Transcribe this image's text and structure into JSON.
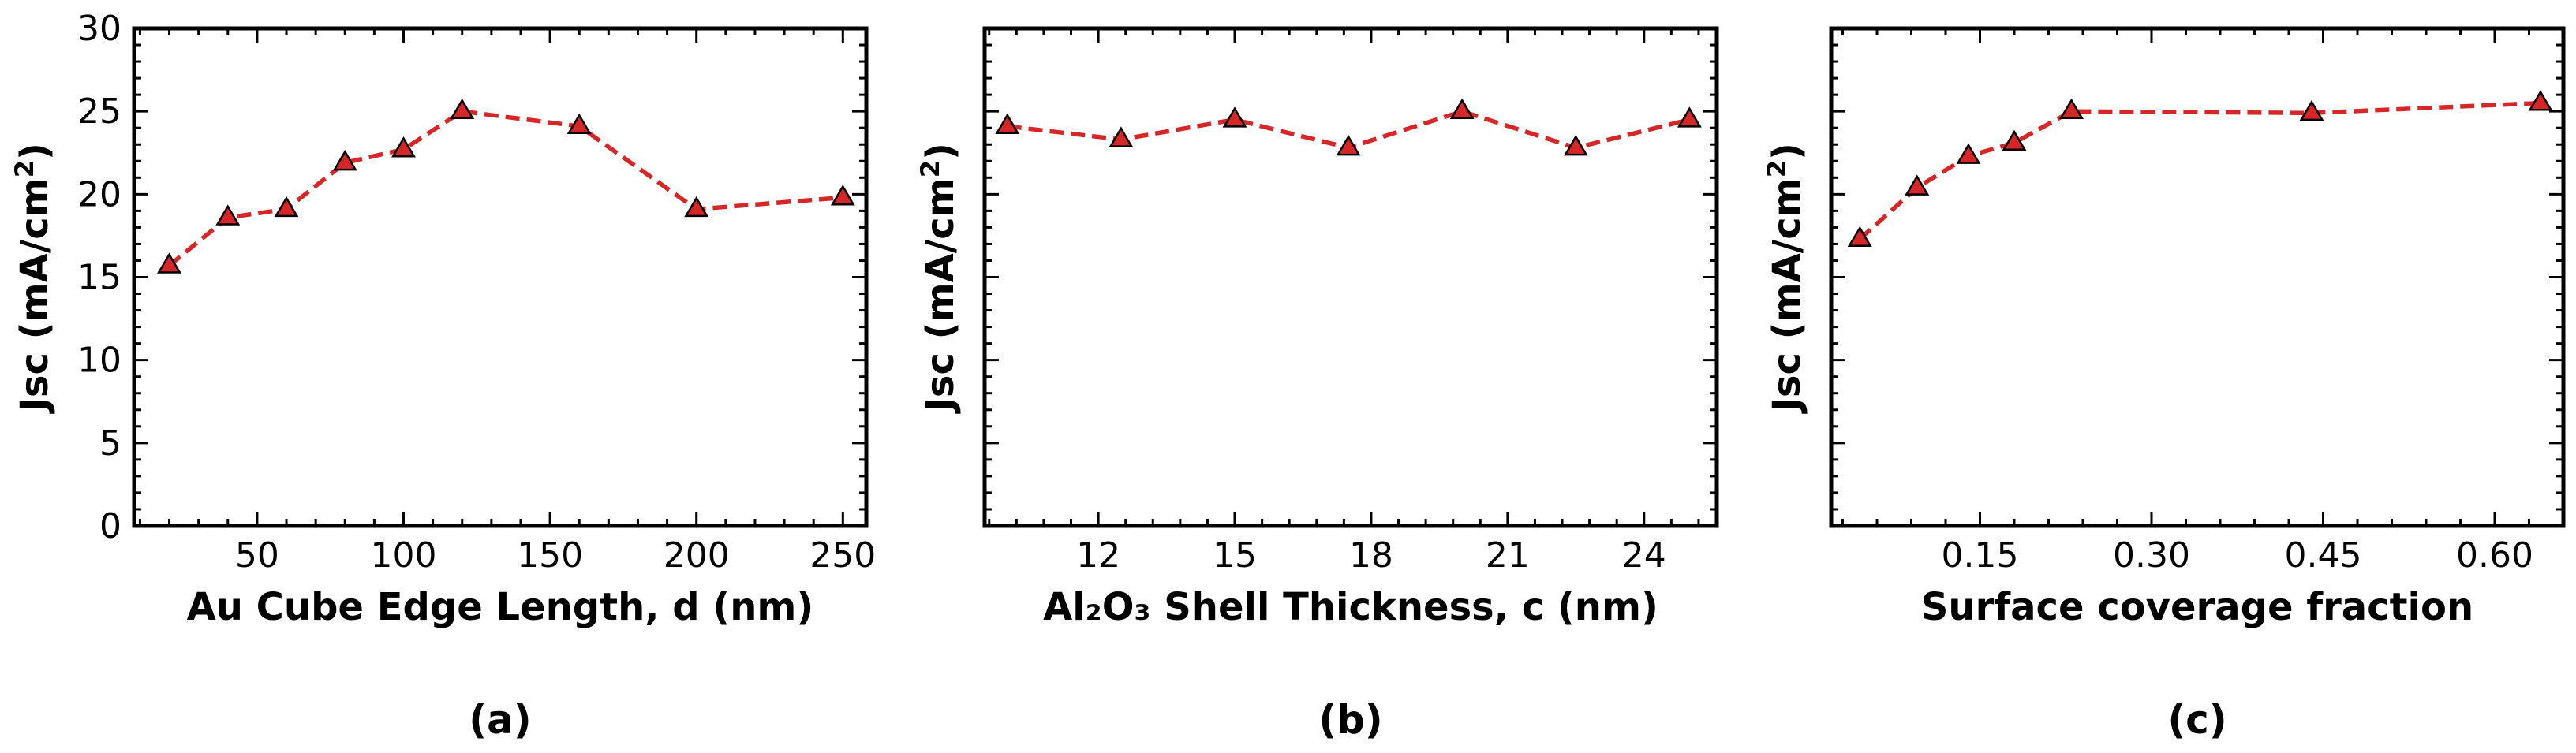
{
  "colors": {
    "line": "#d62728",
    "marker_fill": "#d62728",
    "marker_edge": "#000000",
    "axis": "#000000"
  },
  "chart_data": [
    {
      "type": "line",
      "panel": "(a)",
      "xlabel": "Au Cube Edge Length, d (nm)",
      "ylabel": "Jsc (mA/cm",
      "ylabel_sup": "2",
      "ylabel_end": ")",
      "xlim": [
        8,
        258
      ],
      "ylim": [
        0,
        30
      ],
      "xticks": [
        50,
        100,
        150,
        200,
        250
      ],
      "xtick_labels": [
        "50",
        "100",
        "150",
        "200",
        "250"
      ],
      "yticks": [
        0,
        5,
        10,
        15,
        20,
        25,
        30
      ],
      "ytick_labels": [
        "0",
        "5",
        "10",
        "15",
        "20",
        "25",
        "30"
      ],
      "x": [
        20,
        40,
        60,
        80,
        100,
        120,
        160,
        200,
        250
      ],
      "y": [
        15.7,
        18.6,
        19.1,
        21.9,
        22.7,
        25.0,
        24.1,
        19.1,
        19.8
      ]
    },
    {
      "type": "line",
      "panel": "(b)",
      "xlabel": "Al₂O₃ Shell Thickness, c (nm)",
      "ylabel": "Jsc (mA/cm",
      "ylabel_sup": "2",
      "ylabel_end": ")",
      "xlim": [
        9.5,
        25.6
      ],
      "ylim": [
        0,
        30
      ],
      "xticks": [
        12,
        15,
        18,
        21,
        24
      ],
      "xtick_labels": [
        "12",
        "15",
        "18",
        "21",
        "24"
      ],
      "yticks": [
        0,
        5,
        10,
        15,
        20,
        25,
        30
      ],
      "ytick_labels": [],
      "x": [
        10,
        12.5,
        15,
        17.5,
        20,
        22.5,
        25
      ],
      "y": [
        24.1,
        23.3,
        24.5,
        22.8,
        25.0,
        22.8,
        24.5
      ]
    },
    {
      "type": "line",
      "panel": "(c)",
      "xlabel": "Surface coverage fraction",
      "ylabel": "Jsc (mA/cm",
      "ylabel_sup": "2",
      "ylabel_end": ")",
      "xlim": [
        0.02,
        0.66
      ],
      "ylim": [
        0,
        30
      ],
      "xticks": [
        0.15,
        0.3,
        0.45,
        0.6
      ],
      "xtick_labels": [
        "0.15",
        "0.30",
        "0.45",
        "0.60"
      ],
      "yticks": [
        0,
        5,
        10,
        15,
        20,
        25,
        30
      ],
      "ytick_labels": [],
      "x": [
        0.045,
        0.095,
        0.14,
        0.18,
        0.23,
        0.44,
        0.64
      ],
      "y": [
        17.3,
        20.4,
        22.3,
        23.1,
        25.0,
        24.9,
        25.5
      ]
    }
  ]
}
